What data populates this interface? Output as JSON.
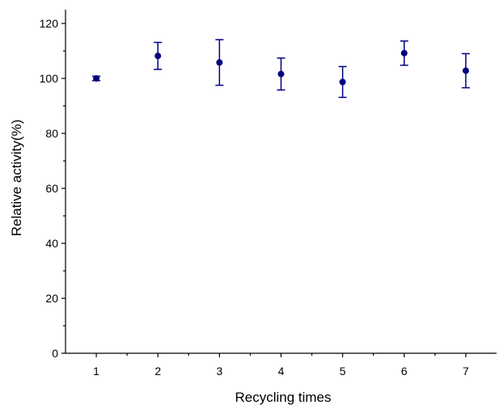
{
  "chart_data": {
    "type": "scatter",
    "title": "",
    "xlabel": "Recycling times",
    "ylabel": "Relative activity(%)",
    "xlim": [
      0.5,
      7.5
    ],
    "ylim": [
      0,
      125
    ],
    "x_ticks": [
      1,
      2,
      3,
      4,
      5,
      6,
      7
    ],
    "y_ticks": [
      0,
      20,
      40,
      60,
      80,
      100,
      120
    ],
    "grid": false,
    "legend": "none",
    "marker_color": "#000080",
    "series": [
      {
        "x": [
          1,
          2,
          3,
          4,
          5,
          6,
          7
        ],
        "y": [
          100,
          108.2,
          105.8,
          101.6,
          98.7,
          109.2,
          102.8
        ],
        "error": [
          0.8,
          4.9,
          8.3,
          5.8,
          5.6,
          4.4,
          6.2
        ]
      }
    ]
  }
}
